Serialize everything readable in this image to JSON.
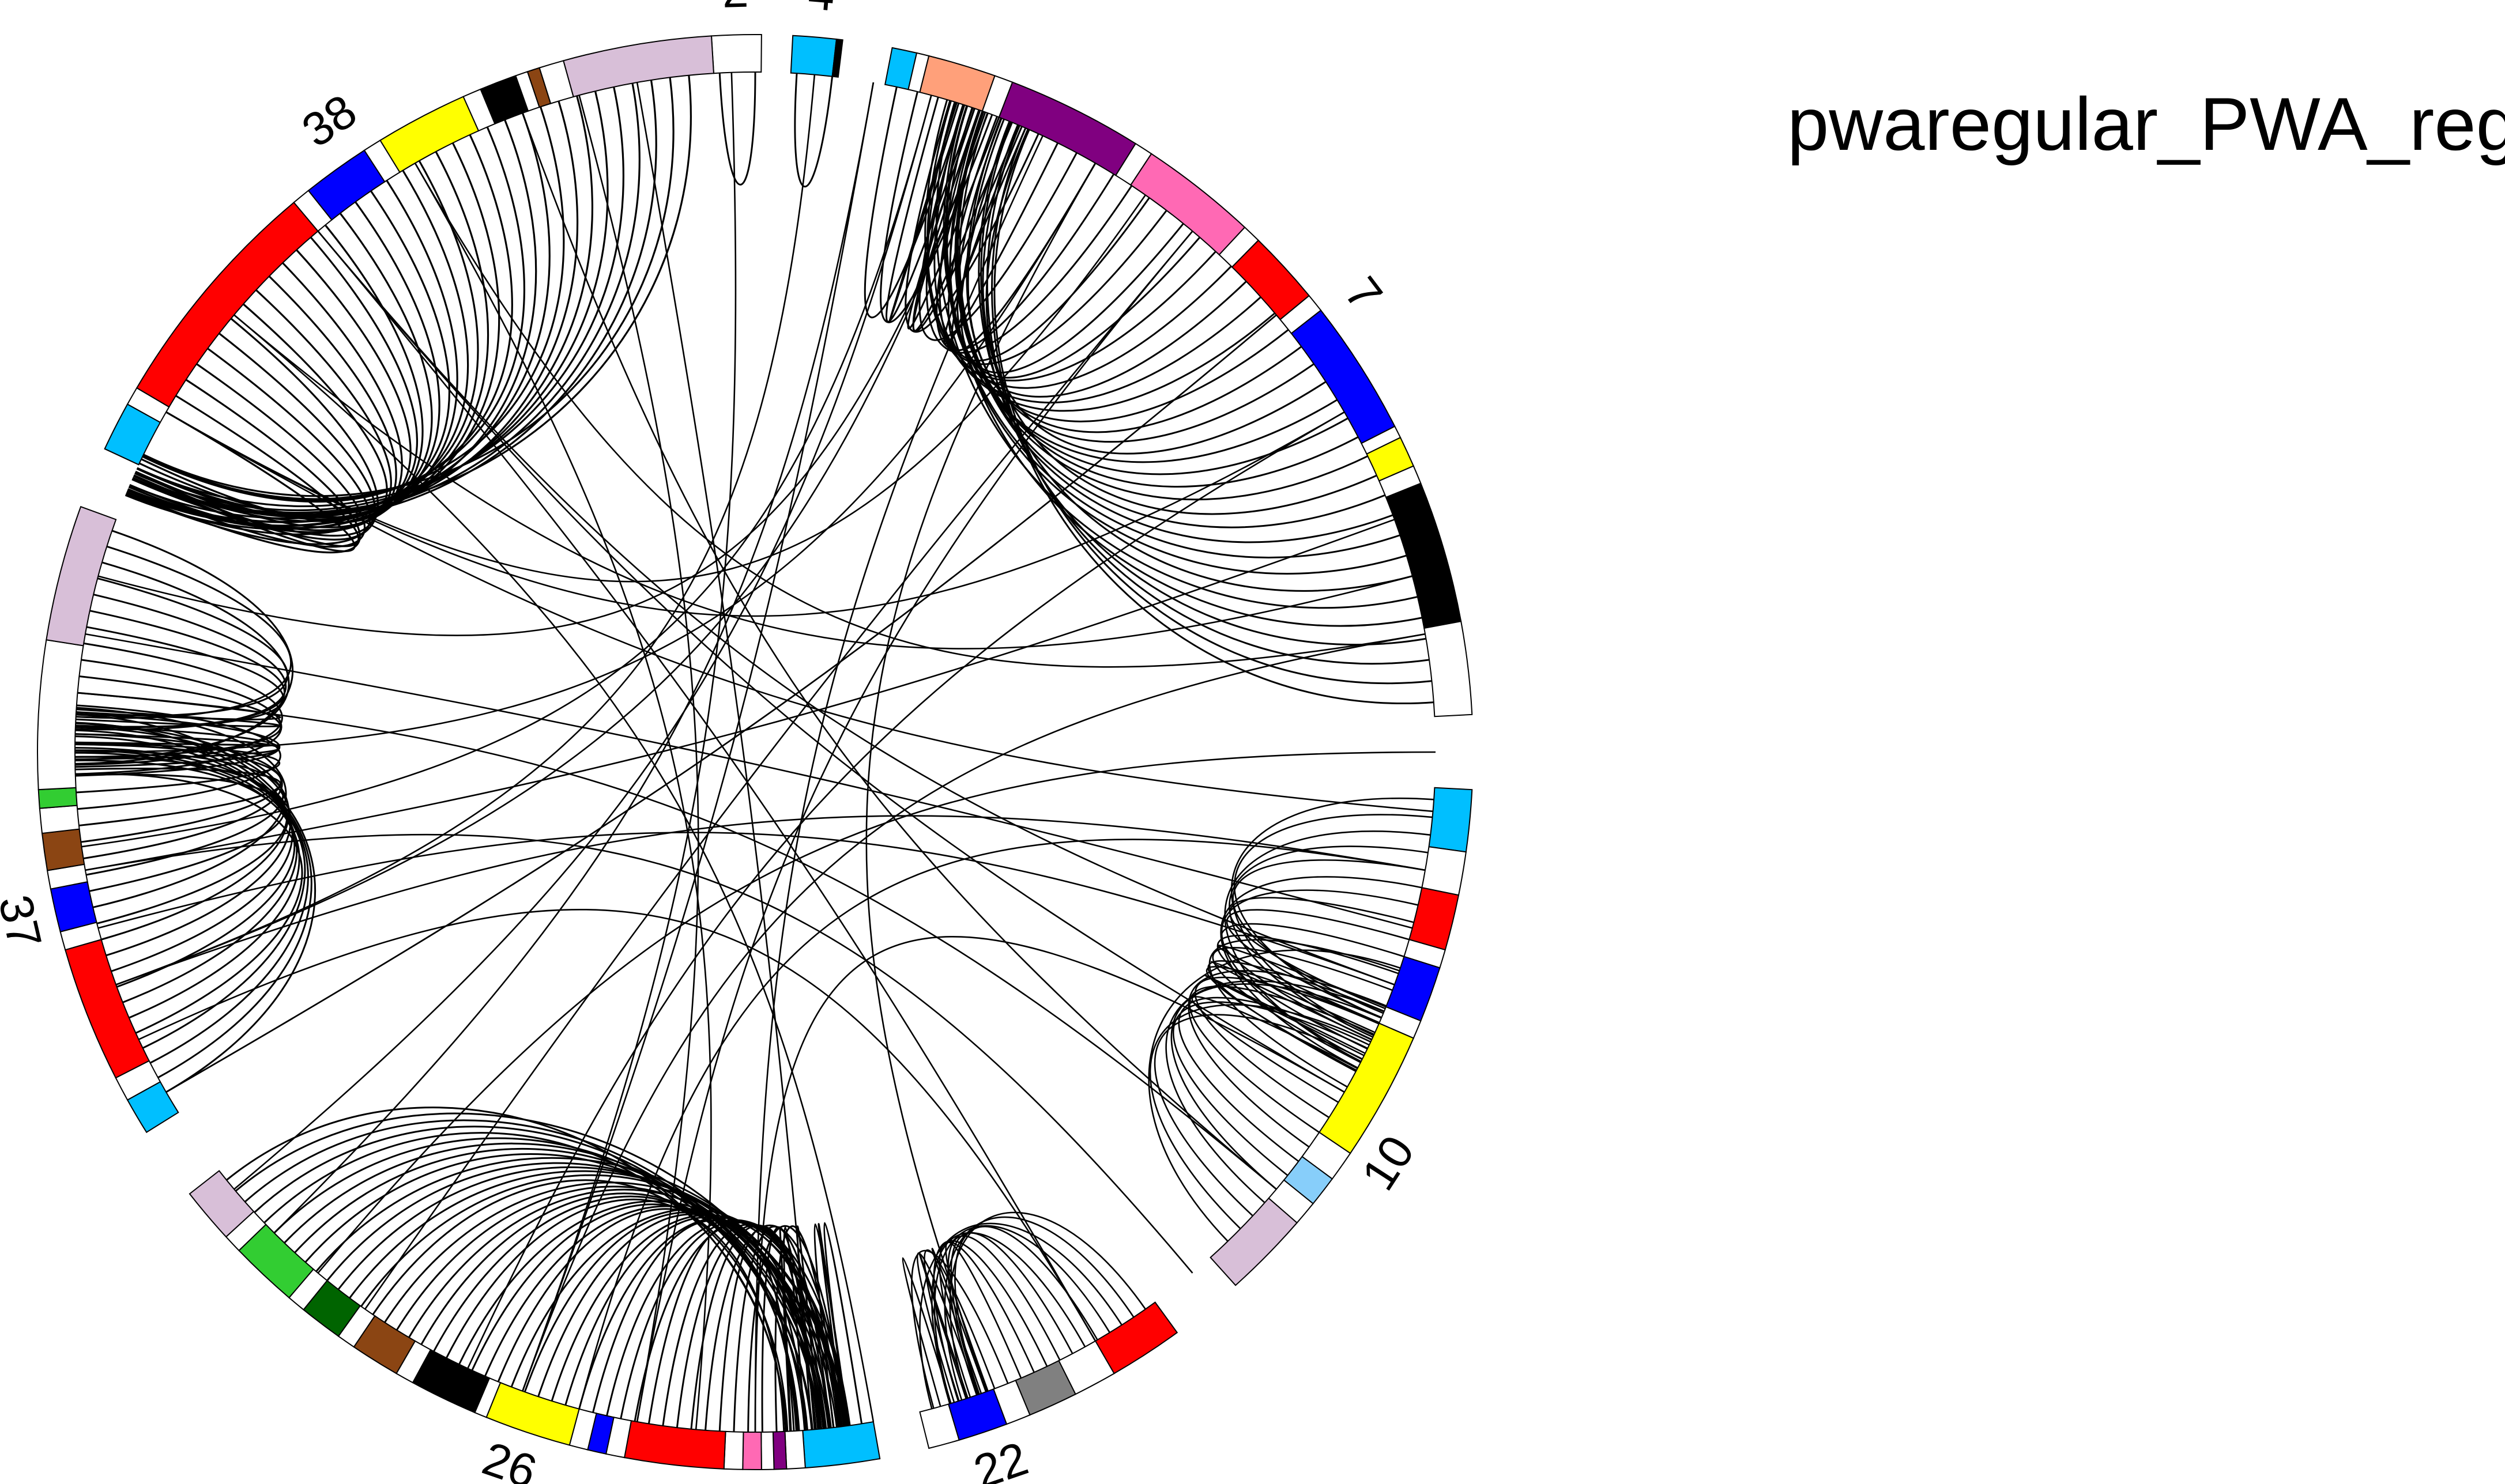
{
  "title": "pwaregular_PWA_reg",
  "chart_data": {
    "type": "chord",
    "title": "pwaregular_PWA_reg",
    "segments": [
      {
        "label": "2"
      },
      {
        "label": "4"
      },
      {
        "label": "7"
      },
      {
        "label": "10"
      },
      {
        "label": "22"
      },
      {
        "label": "26"
      },
      {
        "label": "37"
      },
      {
        "label": "38"
      }
    ]
  },
  "palette": {
    "lavender": "#d8bfd8",
    "red": "#ff0000",
    "blue": "#0000ff",
    "yellow": "#ffff00",
    "black": "#000000",
    "white": "#ffffff",
    "deepskyblue": "#00bfff",
    "lightskyblue": "#87cefa",
    "purple": "#800080",
    "hotpink": "#ff69b4",
    "lightsalmon": "#ffa07a",
    "saddlebrown": "#8b4513",
    "limegreen": "#32cd32",
    "darkgreen": "#006400",
    "gray": "#808080"
  }
}
